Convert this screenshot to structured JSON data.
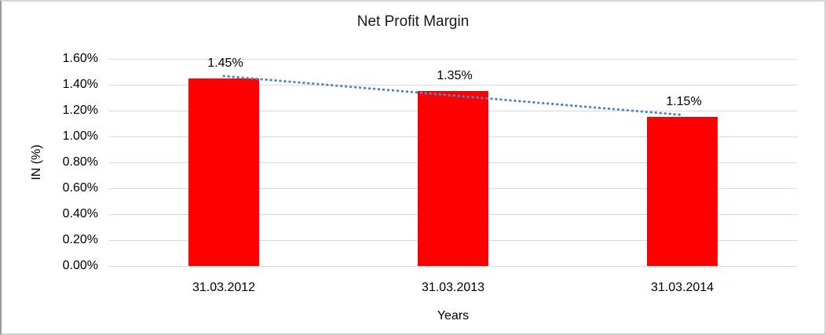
{
  "chart_data": {
    "type": "bar",
    "title": "Net Profit Margin",
    "xlabel": "Years",
    "ylabel": "IN (%)",
    "categories": [
      "31.03.2012",
      "31.03.2013",
      "31.03.2014"
    ],
    "values": [
      1.45,
      1.35,
      1.15
    ],
    "data_labels": [
      "1.45%",
      "1.35%",
      "1.15%"
    ],
    "ylim": [
      0,
      1.6
    ],
    "ytick_step": 0.2,
    "ytick_labels": [
      "0.00%",
      "0.20%",
      "0.40%",
      "0.60%",
      "0.80%",
      "1.00%",
      "1.20%",
      "1.40%",
      "1.60%"
    ],
    "grid": true,
    "legend_position": "none",
    "bar_color": "#ff0000",
    "gridline_color": "#d9d9d9",
    "text_color": "#000000",
    "trendline": {
      "type": "linear",
      "style": "dotted",
      "color": "#4e87c8",
      "start_value": 1.4667,
      "end_value": 1.1667
    }
  }
}
